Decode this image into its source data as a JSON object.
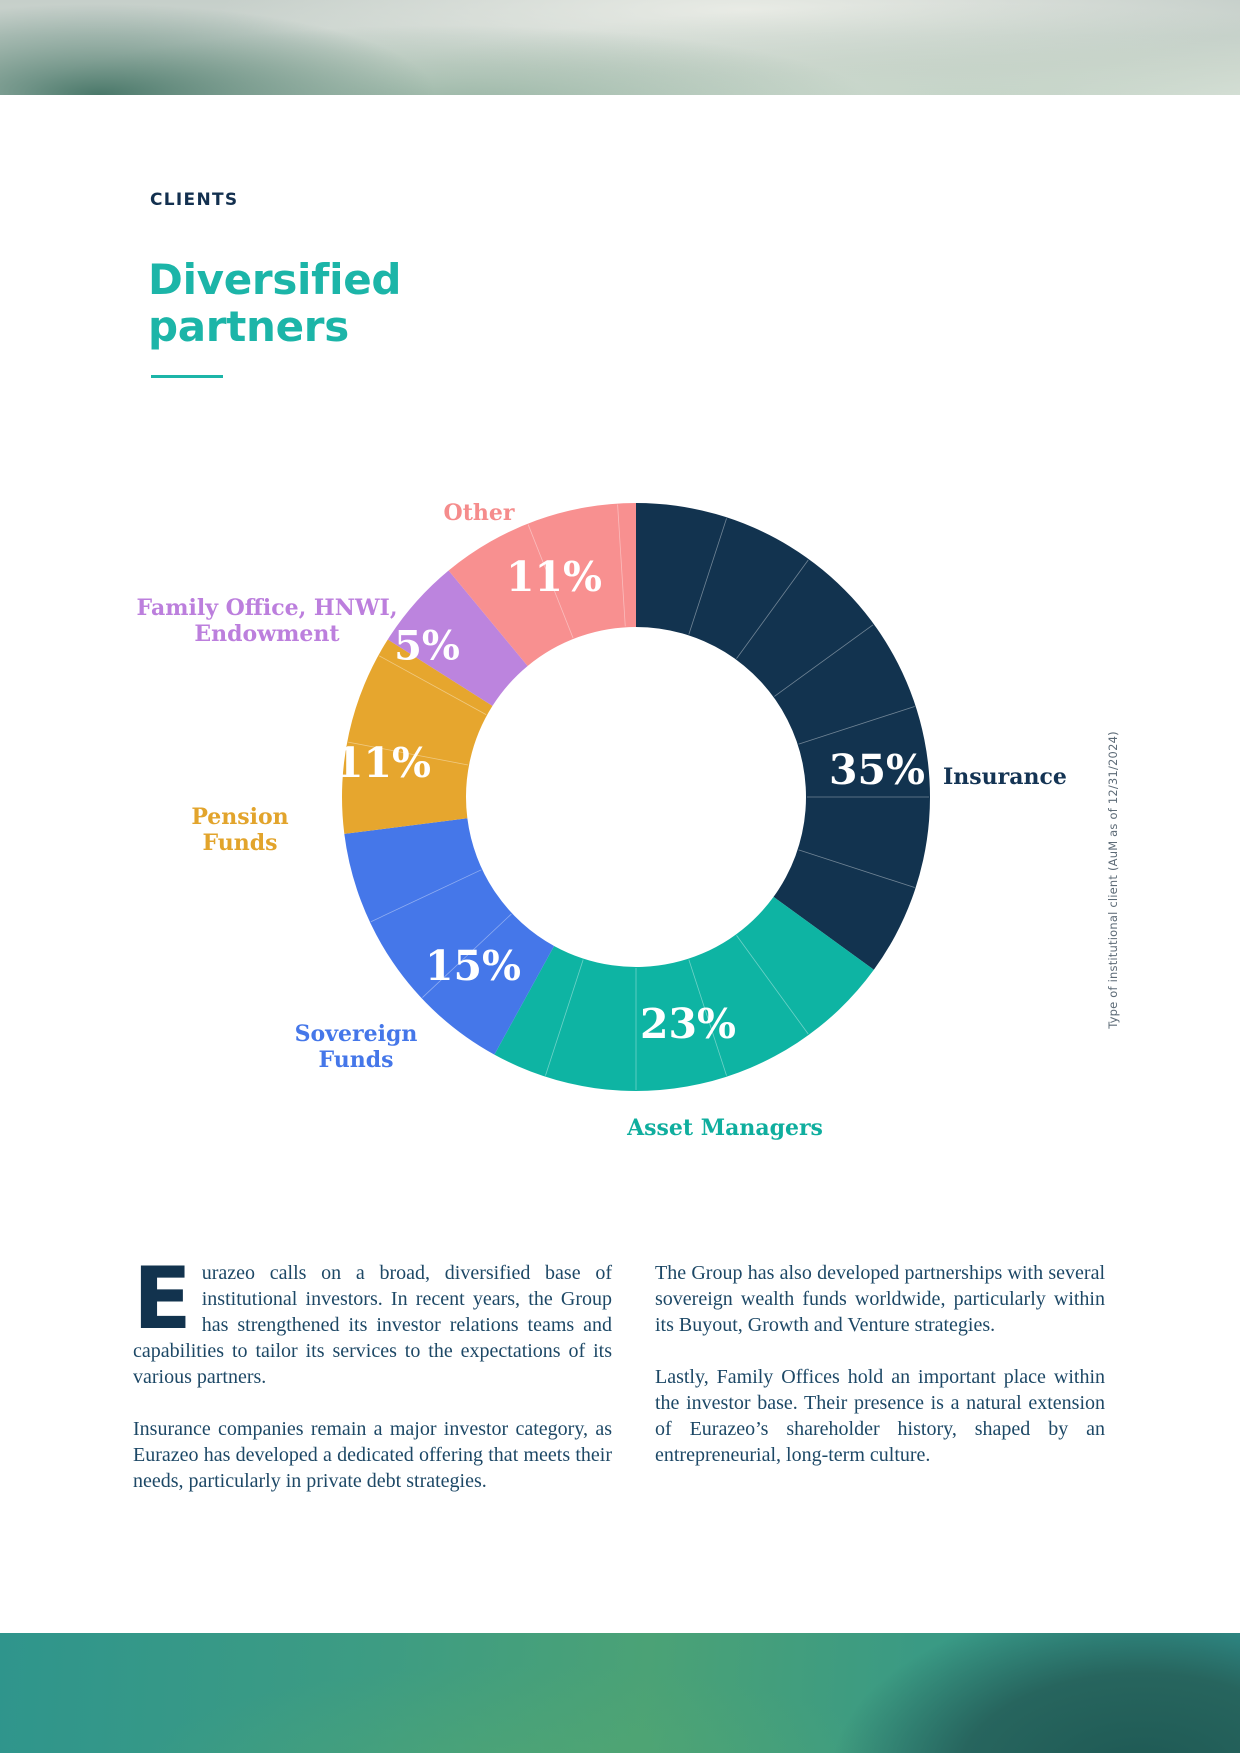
{
  "header": {
    "eyebrow": "CLIENTS",
    "title_line1": "Diversified",
    "title_line2": "partners"
  },
  "chart_data": {
    "type": "pie",
    "variant": "donut",
    "caption": "Type of institutional client (AuM as of 12/31/2024)",
    "start_angle_deg": 0,
    "direction": "clockwise",
    "subdivider_step": 5,
    "subdivider_color": "rgba(255,255,255,0.4)",
    "segments": [
      {
        "label": "Insurance",
        "value": 35,
        "color": "#12334f"
      },
      {
        "label": "Asset Managers",
        "value": 23,
        "color": "#0eb4a3"
      },
      {
        "label": "Sovereign Funds",
        "value": 15,
        "color": "#4577e9"
      },
      {
        "label": "Pension Funds",
        "value": 11,
        "color": "#e6a62e"
      },
      {
        "label": "Family Office, HNWI, Endowment",
        "value": 5,
        "color": "#bc84de"
      },
      {
        "label": "Other",
        "value": 11,
        "color": "#f89090"
      }
    ]
  },
  "chart_labels": {
    "insurance": {
      "pct": "35%",
      "name": "Insurance"
    },
    "asset_managers": {
      "pct": "23%",
      "name": "Asset Managers"
    },
    "sovereign": {
      "pct": "15%",
      "name_line1": "Sovereign",
      "name_line2": "Funds"
    },
    "pension": {
      "pct": "11%",
      "name_line1": "Pension",
      "name_line2": "Funds"
    },
    "family_office": {
      "pct": "5%",
      "name_line1": "Family Office, HNWI,",
      "name_line2": "Endowment"
    },
    "other": {
      "pct": "11%",
      "name": "Other"
    }
  },
  "body": {
    "dropcap": "E",
    "col1_para1_rest": "urazeo calls on a broad, diversified base of institutional investors. In recent years, the Group has strengthened its investor relations teams and capabilities to tailor its services to the expectations of its various partners.",
    "col1_para2": "Insurance companies remain a major investor category, as Eurazeo has developed a dedicated offering that meets their needs, particularly in private debt strategies.",
    "col2_para1": "The Group has also developed partnerships with several sovereign wealth funds worldwide, particularly within its Buyout, Growth and Venture strategies.",
    "col2_para2": "Lastly, Family Offices hold an important place within the investor base. Their presence is a natural extension of Eurazeo’s shareholder history, shaped by an entrepreneurial, long-term culture."
  },
  "colors": {
    "accent_teal": "#1cb5a8",
    "navy": "#12334f",
    "body_text": "#1d4866",
    "caption_gray": "#5d6b77"
  }
}
